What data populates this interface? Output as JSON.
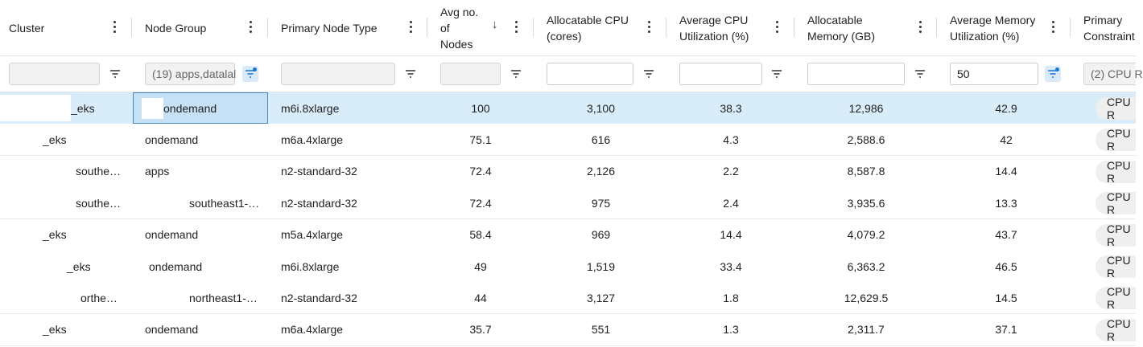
{
  "header": {
    "columns": [
      {
        "key": "cluster",
        "label": "Cluster"
      },
      {
        "key": "node_group",
        "label": "Node Group"
      },
      {
        "key": "primary_node_type",
        "label": "Primary Node Type"
      },
      {
        "key": "avg_nodes",
        "label": "Avg no.\nof\nNodes",
        "sort": "↓"
      },
      {
        "key": "alloc_cpu",
        "label": "Allocatable CPU\n(cores)"
      },
      {
        "key": "avg_cpu",
        "label": "Average CPU\nUtilization (%)"
      },
      {
        "key": "alloc_mem",
        "label": "Allocatable\nMemory (GB)"
      },
      {
        "key": "avg_mem",
        "label": "Average Memory\nUtilization (%)"
      },
      {
        "key": "primary_constraint",
        "label": "Primary\nConstraint"
      }
    ]
  },
  "filters": {
    "cluster": "",
    "node_group": "(19) apps,datalal",
    "primary_node_type": "",
    "avg_nodes": "",
    "alloc_cpu": "",
    "avg_cpu": "",
    "alloc_mem": "",
    "avg_mem": "50",
    "primary_constraint": "(2) CPU R"
  },
  "rows": [
    {
      "cluster": "_eks",
      "node_group": "ondemand",
      "type": "m6i.8xlarge",
      "nodes": "100",
      "cpu": "3,100",
      "cpu_util": "38.3",
      "mem": "12,986",
      "mem_util": "42.9",
      "constraint": "CPU R"
    },
    {
      "cluster": "_eks",
      "node_group": "ondemand",
      "type": "m6a.4xlarge",
      "nodes": "75.1",
      "cpu": "616",
      "cpu_util": "4.3",
      "mem": "2,588.6",
      "mem_util": "42",
      "constraint": "CPU R"
    },
    {
      "cluster": "southe…",
      "node_group": "apps",
      "type": "n2-standard-32",
      "nodes": "72.4",
      "cpu": "2,126",
      "cpu_util": "2.2",
      "mem": "8,587.8",
      "mem_util": "14.4",
      "constraint": "CPU R"
    },
    {
      "cluster": "southe…",
      "node_group": "southeast1-…",
      "type": "n2-standard-32",
      "nodes": "72.4",
      "cpu": "975",
      "cpu_util": "2.4",
      "mem": "3,935.6",
      "mem_util": "13.3",
      "constraint": "CPU R"
    },
    {
      "cluster": "_eks",
      "node_group": "ondemand",
      "type": "m5a.4xlarge",
      "nodes": "58.4",
      "cpu": "969",
      "cpu_util": "14.4",
      "mem": "4,079.2",
      "mem_util": "43.7",
      "constraint": "CPU R"
    },
    {
      "cluster": "_eks",
      "node_group": "ondemand",
      "type": "m6i.8xlarge",
      "nodes": "49",
      "cpu": "1,519",
      "cpu_util": "33.4",
      "mem": "6,363.2",
      "mem_util": "46.5",
      "constraint": "CPU R"
    },
    {
      "cluster": "orthe…",
      "node_group": "northeast1-…",
      "type": "n2-standard-32",
      "nodes": "44",
      "cpu": "3,127",
      "cpu_util": "1.8",
      "mem": "12,629.5",
      "mem_util": "14.5",
      "constraint": "CPU R"
    },
    {
      "cluster": "_eks",
      "node_group": "ondemand",
      "type": "m6a.4xlarge",
      "nodes": "35.7",
      "cpu": "551",
      "cpu_util": "1.3",
      "mem": "2,311.7",
      "mem_util": "37.1",
      "constraint": "CPU R"
    }
  ],
  "colors": {
    "selected_row": "#d9ecf9",
    "filter_active": "#1976d2"
  }
}
